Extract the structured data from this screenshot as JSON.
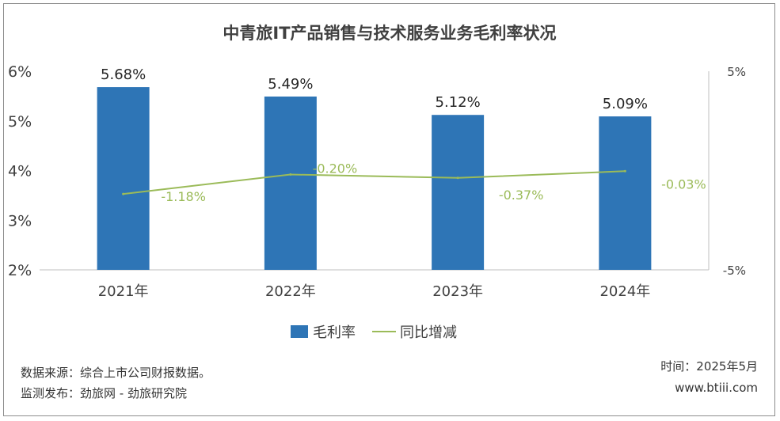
{
  "chart_data": {
    "type": "bar",
    "title": "中青旅IT产品销售与技术服务业务毛利率状况",
    "categories": [
      "2021年",
      "2022年",
      "2023年",
      "2024年"
    ],
    "series": [
      {
        "name": "毛利率",
        "type": "bar",
        "axis": "left",
        "color": "#2e75b6",
        "values": [
          5.68,
          5.49,
          5.12,
          5.09
        ],
        "labels": [
          "5.68%",
          "5.49%",
          "5.12%",
          "5.09%"
        ]
      },
      {
        "name": "同比增减",
        "type": "line",
        "axis": "right",
        "color": "#9bbb59",
        "values": [
          -1.18,
          -0.2,
          -0.37,
          -0.03
        ],
        "labels": [
          "-1.18%",
          "-0.20%",
          "-0.37%",
          "-0.03%"
        ]
      }
    ],
    "y_left": {
      "ylim": [
        2,
        6
      ],
      "ticks": [
        "2%",
        "3%",
        "4%",
        "5%",
        "6%"
      ]
    },
    "y_right": {
      "ylim": [
        -5,
        5
      ],
      "ticks": [
        "-5%",
        "5%"
      ]
    },
    "legend_position": "bottom",
    "grid": false
  },
  "footer": {
    "source": "数据来源：综合上市公司财报数据。",
    "monitor": "监测发布：劲旅网 - 劲旅研究院",
    "time": "时间：2025年5月",
    "website": "www.btiii.com"
  }
}
